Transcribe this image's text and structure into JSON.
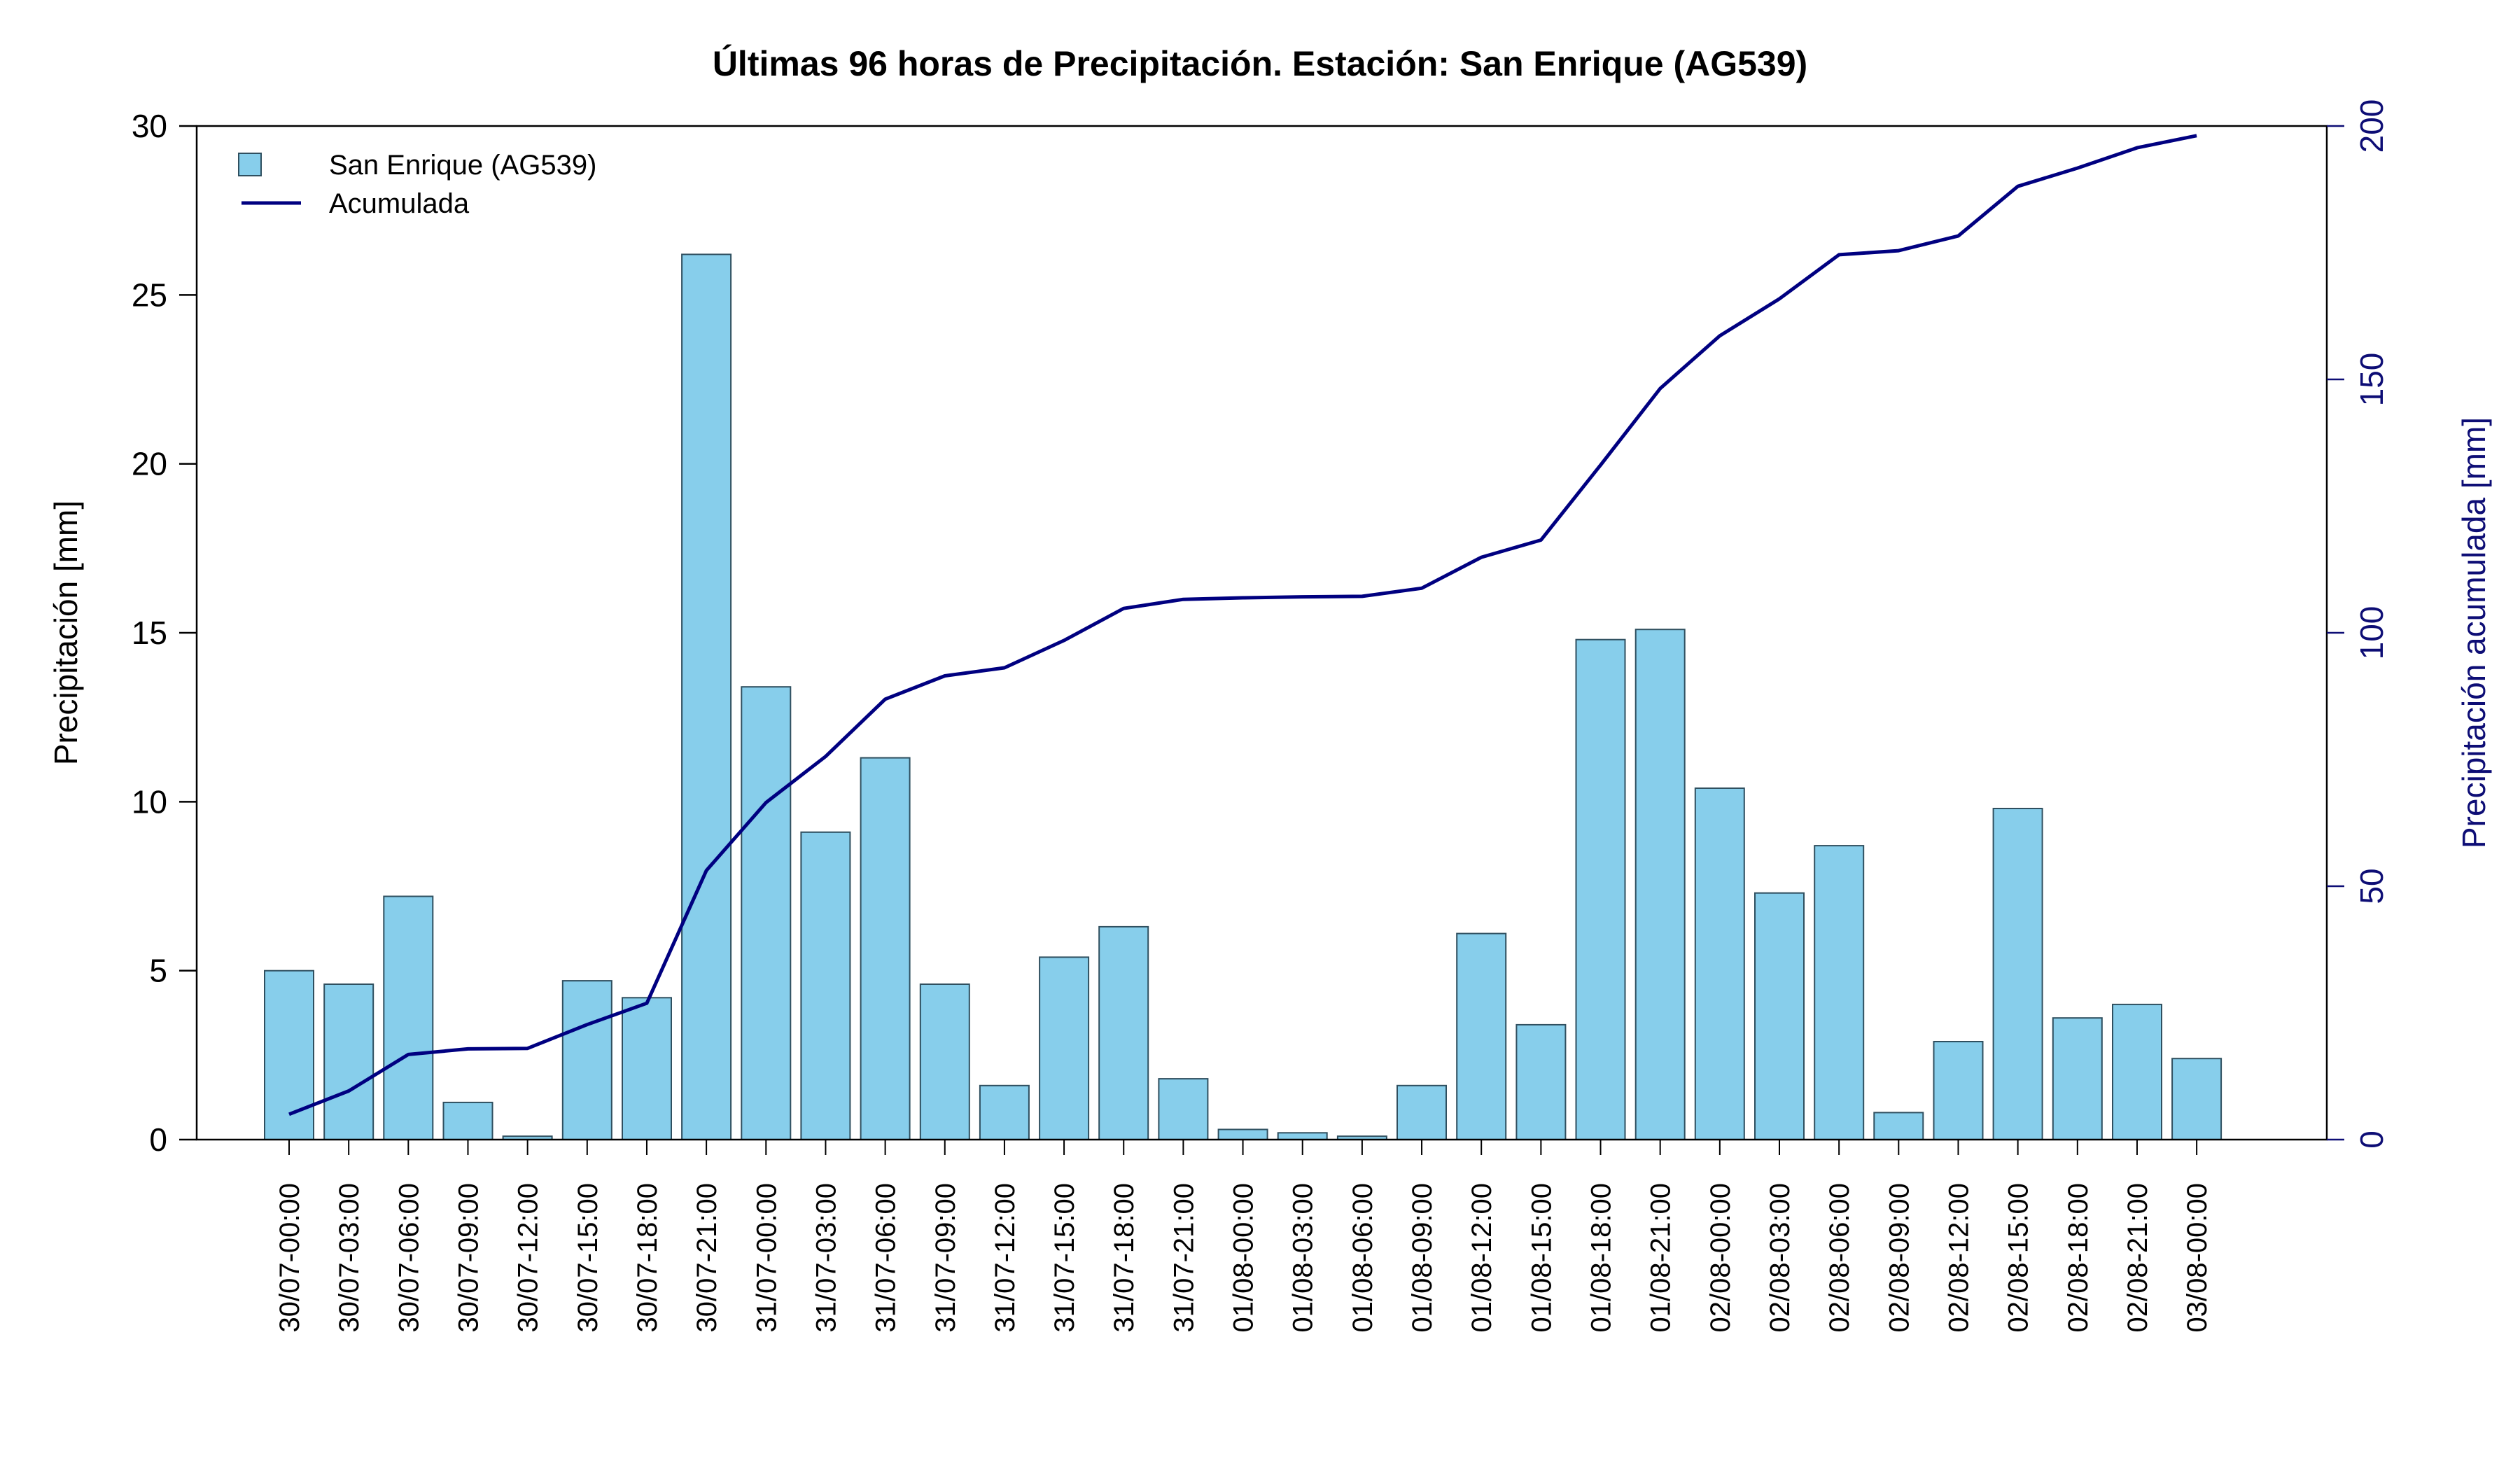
{
  "chart_data": {
    "type": "bar",
    "title": "Últimas 96 horas de Precipitación. Estación: San Enrique (AG539)",
    "ylabel": "Precipitación [mm]",
    "ylabel_right": "Precipitación acumulada [mm]",
    "ylim": [
      0,
      30
    ],
    "ylim_right": [
      0,
      200
    ],
    "yticks": [
      "0",
      "5",
      "10",
      "15",
      "20",
      "25",
      "30"
    ],
    "yticks_right": [
      "0",
      "50",
      "100",
      "150",
      "200"
    ],
    "legend_position": "top-left",
    "grid": false,
    "categories": [
      "30/07-00:00",
      "30/07-03:00",
      "30/07-06:00",
      "30/07-09:00",
      "30/07-12:00",
      "30/07-15:00",
      "30/07-18:00",
      "30/07-21:00",
      "31/07-00:00",
      "31/07-03:00",
      "31/07-06:00",
      "31/07-09:00",
      "31/07-12:00",
      "31/07-15:00",
      "31/07-18:00",
      "31/07-21:00",
      "01/08-00:00",
      "01/08-03:00",
      "01/08-06:00",
      "01/08-09:00",
      "01/08-12:00",
      "01/08-15:00",
      "01/08-18:00",
      "01/08-21:00",
      "02/08-00:00",
      "02/08-03:00",
      "02/08-06:00",
      "02/08-09:00",
      "02/08-12:00",
      "02/08-15:00",
      "02/08-18:00",
      "02/08-21:00",
      "03/08-00:00"
    ],
    "series": [
      {
        "name": "San Enrique (AG539)",
        "type": "bar",
        "axis": "left",
        "color": "#87ceeb",
        "edge_color": "#2f4f5f",
        "values": [
          5.0,
          4.6,
          7.2,
          1.1,
          0.1,
          4.7,
          4.2,
          26.2,
          13.4,
          9.1,
          11.3,
          4.6,
          1.6,
          5.4,
          6.3,
          1.8,
          0.3,
          0.2,
          0.1,
          1.6,
          6.1,
          3.4,
          14.8,
          15.1,
          10.4,
          7.3,
          8.7,
          0.8,
          2.9,
          9.8,
          3.6,
          4.0,
          2.4
        ]
      },
      {
        "name": "Acumulada",
        "type": "line",
        "axis": "right",
        "color": "#000080",
        "values": [
          5.0,
          9.6,
          16.8,
          17.9,
          18.0,
          22.7,
          26.9,
          53.1,
          66.5,
          75.6,
          86.9,
          91.5,
          93.1,
          98.5,
          104.8,
          106.6,
          106.9,
          107.1,
          107.2,
          108.8,
          114.9,
          118.3,
          133.1,
          148.2,
          158.6,
          165.9,
          174.6,
          175.4,
          178.3,
          188.1,
          191.7,
          195.7,
          198.1
        ]
      }
    ]
  }
}
